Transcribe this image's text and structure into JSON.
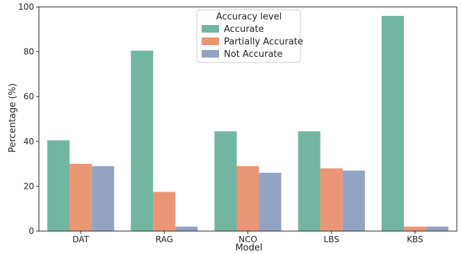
{
  "chart_data": {
    "type": "bar",
    "xlabel": "Model",
    "ylabel": "Percentage (%)",
    "ylim": [
      0,
      100
    ],
    "yticks": [
      0,
      20,
      40,
      60,
      80,
      100
    ],
    "categories": [
      "DAT",
      "RAG",
      "NCO",
      "LBS",
      "KBS"
    ],
    "legend": {
      "title": "Accuracy level",
      "position": "top-center"
    },
    "grid": false,
    "series": [
      {
        "name": "Accurate",
        "color": "#72b6a1",
        "values": [
          40.5,
          80.5,
          44.5,
          44.5,
          96.0
        ]
      },
      {
        "name": "Partially Accurate",
        "color": "#e99675",
        "values": [
          30.0,
          17.5,
          29.0,
          28.0,
          2.0
        ]
      },
      {
        "name": "Not Accurate",
        "color": "#95a3c3",
        "values": [
          29.0,
          2.0,
          26.0,
          27.0,
          2.0
        ]
      }
    ]
  }
}
